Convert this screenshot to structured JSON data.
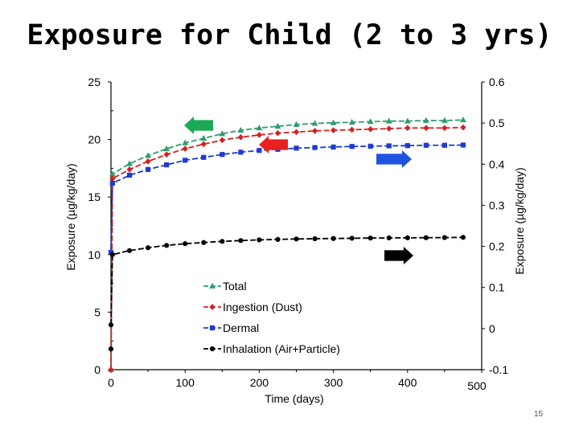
{
  "slide": {
    "title": "Exposure for Child (2 to 3 yrs)",
    "page_number": "15"
  },
  "chart_data": {
    "type": "line",
    "title": "Exposure for Child (2 to 3 yrs)",
    "xlabel": "Time (days)",
    "ylabel": "Exposure (µg/kg/day)",
    "y2label": "Exposure (µg/kg/day)",
    "xlim": [
      0,
      500
    ],
    "ylim": [
      0,
      25
    ],
    "y2lim": [
      -0.1,
      0.6
    ],
    "x_ticks": [
      "0",
      "100",
      "200",
      "300",
      "400",
      "500"
    ],
    "y_ticks": [
      "0",
      "5",
      "10",
      "15",
      "20",
      "25"
    ],
    "y2_ticks": [
      "-0.1",
      "0",
      "0.1",
      "0.2",
      "0.3",
      "0.4",
      "0.5",
      "0.6"
    ],
    "legend_position": "lower-center",
    "x": [
      0,
      2,
      25,
      50,
      75,
      100,
      125,
      150,
      175,
      200,
      225,
      250,
      275,
      300,
      325,
      350,
      375,
      400,
      425,
      450,
      475
    ],
    "series": [
      {
        "name": "Total",
        "color": "#2e9e6b",
        "marker": "triangle",
        "axis": "left",
        "values": [
          0,
          17.0,
          17.9,
          18.6,
          19.2,
          19.7,
          20.1,
          20.5,
          20.8,
          21.0,
          21.15,
          21.3,
          21.4,
          21.45,
          21.5,
          21.55,
          21.6,
          21.6,
          21.65,
          21.65,
          21.7
        ]
      },
      {
        "name": "Ingestion (Dust)",
        "color": "#d42020",
        "marker": "diamond",
        "axis": "left",
        "values": [
          0,
          16.6,
          17.4,
          18.1,
          18.7,
          19.2,
          19.6,
          19.95,
          20.2,
          20.4,
          20.55,
          20.65,
          20.75,
          20.8,
          20.85,
          20.9,
          20.95,
          21.0,
          21.0,
          21.0,
          21.05
        ]
      },
      {
        "name": "Dermal",
        "color": "#1f3ad0",
        "marker": "square",
        "axis": "left",
        "values": [
          10.2,
          16.2,
          16.9,
          17.4,
          17.8,
          18.2,
          18.45,
          18.7,
          18.9,
          19.05,
          19.15,
          19.25,
          19.3,
          19.35,
          19.4,
          19.42,
          19.45,
          19.47,
          19.5,
          19.5,
          19.52
        ]
      },
      {
        "name": "Inhalation (Air+Particle)",
        "color": "#000000",
        "marker": "circle",
        "axis": "left",
        "values": [
          3.9,
          10.0,
          10.35,
          10.6,
          10.8,
          10.95,
          11.05,
          11.15,
          11.22,
          11.28,
          11.32,
          11.36,
          11.38,
          11.4,
          11.42,
          11.44,
          11.45,
          11.46,
          11.47,
          11.48,
          11.5
        ]
      }
    ],
    "annotations": [
      {
        "name": "green-arrow",
        "direction": "left",
        "color": "#1aaa55",
        "axis": "left"
      },
      {
        "name": "red-arrow",
        "direction": "left",
        "color": "#e82020",
        "axis": "left"
      },
      {
        "name": "blue-arrow",
        "direction": "right",
        "color": "#1f52e0",
        "axis": "right"
      },
      {
        "name": "black-arrow",
        "direction": "right",
        "color": "#000000",
        "axis": "right"
      }
    ]
  }
}
